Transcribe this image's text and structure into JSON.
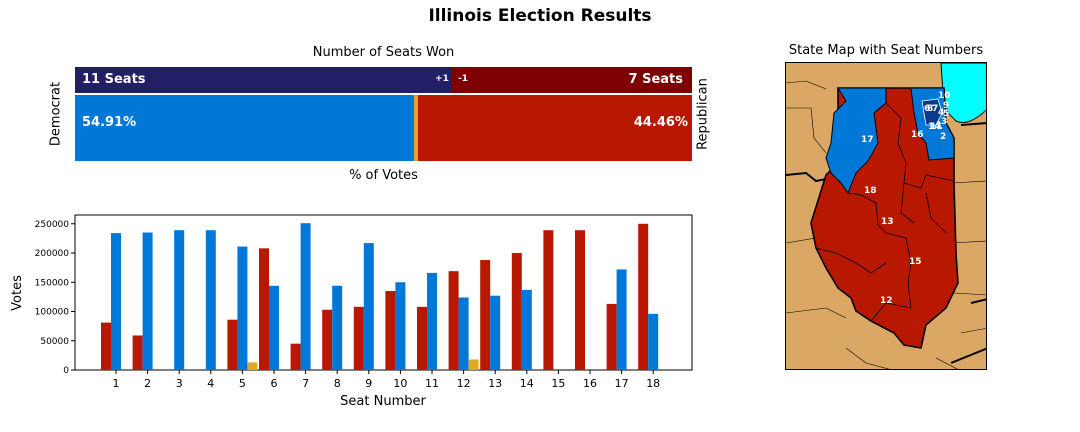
{
  "title": "Illinois Election Results",
  "summary": {
    "title": "Number of Seats Won",
    "democrat_label": "Democrat",
    "republican_label": "Republican",
    "dem_seats_label": "11 Seats",
    "rep_seats_label": "7 Seats",
    "dem_change_label": "+1",
    "rep_change_label": "-1",
    "dem_pct_label": "54.91%",
    "rep_pct_label": "44.46%",
    "votes_axis_label": "% of Votes",
    "dem_seats": 11,
    "rep_seats": 7,
    "dem_pct": 54.91,
    "rep_pct": 44.46
  },
  "map": {
    "title": "State Map with Seat Numbers",
    "seat_numbers": [
      "10",
      "9",
      "8",
      "5",
      "3",
      "1",
      "7",
      "4",
      "11",
      "2",
      "6",
      "14",
      "16",
      "17",
      "18",
      "13",
      "15",
      "12"
    ]
  },
  "colors": {
    "democrat_dark": "#231f66",
    "republican_dark": "#7f0000",
    "democrat": "#0078d7",
    "republican": "#b81800",
    "other": "#e2a823",
    "land": "#dba765",
    "lake": "#00ffff"
  },
  "chart_data": {
    "type": "bar",
    "xlabel": "Seat Number",
    "ylabel": "Votes",
    "categories": [
      "1",
      "2",
      "3",
      "4",
      "5",
      "6",
      "7",
      "8",
      "9",
      "10",
      "11",
      "12",
      "13",
      "14",
      "15",
      "16",
      "17",
      "18"
    ],
    "ylim": [
      0,
      265000
    ],
    "yticks": [
      0,
      50000,
      100000,
      150000,
      200000,
      250000
    ],
    "series": [
      {
        "color": "#b81800",
        "values": [
          81000,
          59000,
          0,
          0,
          86000,
          208000,
          45000,
          103000,
          108000,
          135000,
          108000,
          169000,
          188000,
          200000,
          239000,
          239000,
          113000,
          250000
        ]
      },
      {
        "color": "#0078d7",
        "values": [
          234000,
          235000,
          239000,
          239000,
          211000,
          144000,
          251000,
          144000,
          217000,
          150000,
          166000,
          124000,
          127000,
          137000,
          0,
          0,
          172000,
          96000
        ]
      },
      {
        "color": "#e2a823",
        "values": [
          0,
          0,
          0,
          0,
          13000,
          0,
          0,
          0,
          0,
          0,
          0,
          18000,
          0,
          0,
          0,
          0,
          0,
          0
        ]
      }
    ],
    "grid": false
  }
}
